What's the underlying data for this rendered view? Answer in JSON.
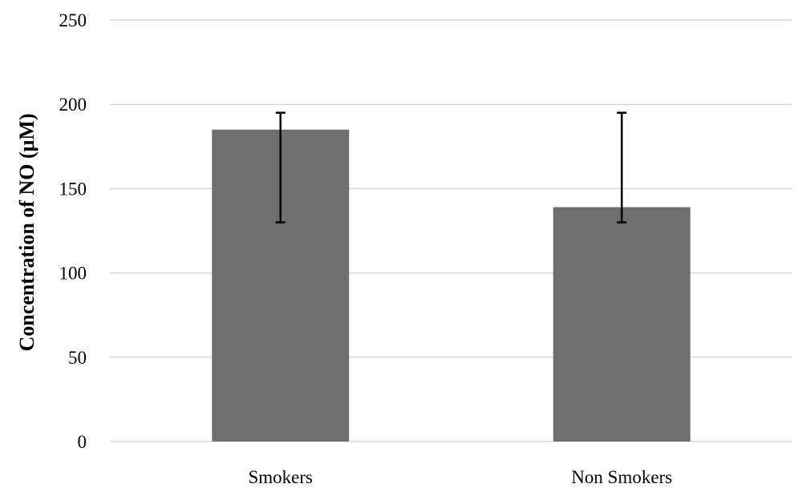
{
  "chart_data": {
    "type": "bar",
    "title": "",
    "xlabel": "",
    "ylabel": "Concentration of NO (μM)",
    "categories": [
      "Smokers",
      "Non Smokers"
    ],
    "values": [
      185,
      139
    ],
    "error_bars": [
      {
        "low": 130,
        "high": 195
      },
      {
        "low": 130,
        "high": 195
      }
    ],
    "ylim": [
      0,
      250
    ],
    "yticks": [
      0,
      50,
      100,
      150,
      200,
      250
    ],
    "grid": true,
    "legend": "none",
    "colors": {
      "bar": "#6f6f6f",
      "grid": "#d9d9d9",
      "error_bar": "#000000",
      "text": "#000000"
    }
  }
}
